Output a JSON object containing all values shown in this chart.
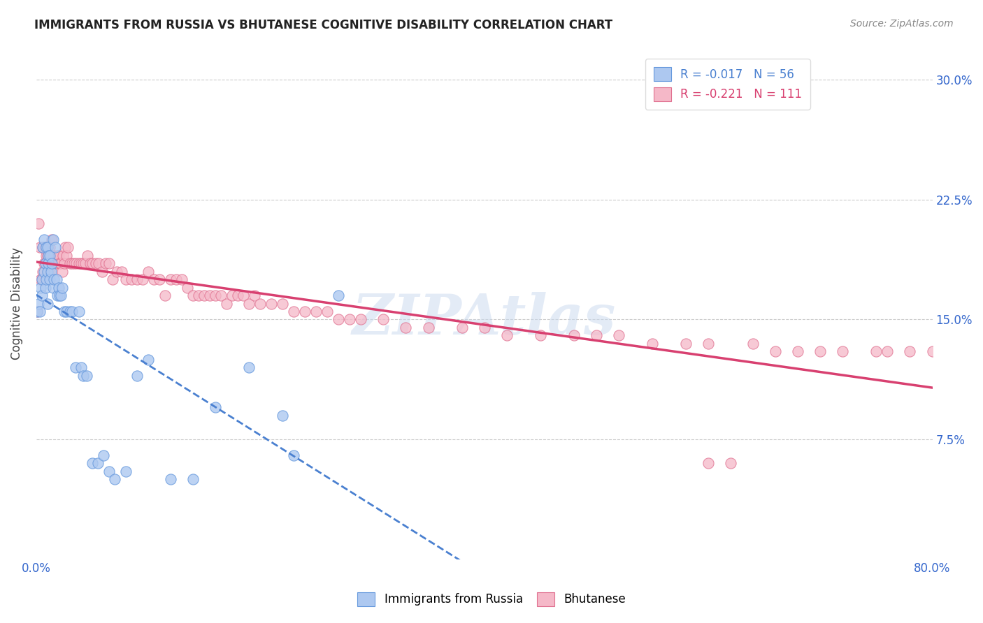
{
  "title": "IMMIGRANTS FROM RUSSIA VS BHUTANESE COGNITIVE DISABILITY CORRELATION CHART",
  "source": "Source: ZipAtlas.com",
  "ylabel": "Cognitive Disability",
  "yticks": [
    "7.5%",
    "15.0%",
    "22.5%",
    "30.0%"
  ],
  "ytick_values": [
    0.075,
    0.15,
    0.225,
    0.3
  ],
  "xlim": [
    0.0,
    0.8
  ],
  "ylim": [
    0.0,
    0.32
  ],
  "color_russia_fill": "#adc8f0",
  "color_russia_edge": "#6699dd",
  "color_bhutan_fill": "#f5b8c8",
  "color_bhutan_edge": "#e07090",
  "trendline_russia_color": "#4a80d0",
  "trendline_bhutan_color": "#d84070",
  "watermark": "ZIPAtlas",
  "russia_R": -0.017,
  "russia_N": 56,
  "bhutan_R": -0.221,
  "bhutan_N": 111,
  "russia_x": [
    0.001,
    0.002,
    0.003,
    0.004,
    0.005,
    0.005,
    0.006,
    0.007,
    0.007,
    0.008,
    0.008,
    0.009,
    0.009,
    0.01,
    0.01,
    0.01,
    0.011,
    0.011,
    0.012,
    0.012,
    0.013,
    0.014,
    0.015,
    0.015,
    0.016,
    0.017,
    0.018,
    0.019,
    0.02,
    0.021,
    0.022,
    0.023,
    0.025,
    0.027,
    0.03,
    0.032,
    0.035,
    0.038,
    0.04,
    0.042,
    0.045,
    0.05,
    0.055,
    0.06,
    0.065,
    0.07,
    0.08,
    0.09,
    0.1,
    0.12,
    0.14,
    0.16,
    0.19,
    0.22,
    0.23,
    0.27
  ],
  "russia_y": [
    0.155,
    0.16,
    0.155,
    0.17,
    0.175,
    0.165,
    0.195,
    0.18,
    0.2,
    0.17,
    0.185,
    0.175,
    0.195,
    0.18,
    0.16,
    0.195,
    0.19,
    0.185,
    0.175,
    0.19,
    0.18,
    0.185,
    0.17,
    0.2,
    0.175,
    0.195,
    0.175,
    0.165,
    0.17,
    0.165,
    0.165,
    0.17,
    0.155,
    0.155,
    0.155,
    0.155,
    0.12,
    0.155,
    0.12,
    0.115,
    0.115,
    0.06,
    0.06,
    0.065,
    0.055,
    0.05,
    0.055,
    0.115,
    0.125,
    0.05,
    0.05,
    0.095,
    0.12,
    0.09,
    0.065,
    0.165
  ],
  "bhutan_x": [
    0.001,
    0.002,
    0.003,
    0.004,
    0.005,
    0.006,
    0.006,
    0.007,
    0.008,
    0.008,
    0.009,
    0.009,
    0.01,
    0.01,
    0.011,
    0.012,
    0.012,
    0.013,
    0.014,
    0.015,
    0.015,
    0.016,
    0.017,
    0.018,
    0.019,
    0.02,
    0.021,
    0.022,
    0.023,
    0.024,
    0.025,
    0.026,
    0.027,
    0.028,
    0.03,
    0.032,
    0.034,
    0.036,
    0.038,
    0.04,
    0.042,
    0.044,
    0.046,
    0.048,
    0.05,
    0.053,
    0.056,
    0.059,
    0.062,
    0.065,
    0.068,
    0.072,
    0.076,
    0.08,
    0.085,
    0.09,
    0.095,
    0.1,
    0.105,
    0.11,
    0.115,
    0.12,
    0.125,
    0.13,
    0.135,
    0.14,
    0.145,
    0.15,
    0.155,
    0.16,
    0.165,
    0.17,
    0.175,
    0.18,
    0.185,
    0.19,
    0.195,
    0.2,
    0.21,
    0.22,
    0.23,
    0.24,
    0.25,
    0.26,
    0.27,
    0.28,
    0.29,
    0.31,
    0.33,
    0.35,
    0.38,
    0.4,
    0.42,
    0.45,
    0.48,
    0.5,
    0.52,
    0.55,
    0.58,
    0.6,
    0.62,
    0.64,
    0.66,
    0.68,
    0.7,
    0.72,
    0.75,
    0.76,
    0.78,
    0.8,
    0.6
  ],
  "bhutan_y": [
    0.155,
    0.21,
    0.195,
    0.175,
    0.175,
    0.195,
    0.18,
    0.185,
    0.185,
    0.195,
    0.19,
    0.195,
    0.185,
    0.19,
    0.185,
    0.18,
    0.195,
    0.19,
    0.2,
    0.185,
    0.185,
    0.19,
    0.185,
    0.185,
    0.19,
    0.19,
    0.185,
    0.185,
    0.18,
    0.19,
    0.185,
    0.195,
    0.19,
    0.195,
    0.185,
    0.185,
    0.185,
    0.185,
    0.185,
    0.185,
    0.185,
    0.185,
    0.19,
    0.185,
    0.185,
    0.185,
    0.185,
    0.18,
    0.185,
    0.185,
    0.175,
    0.18,
    0.18,
    0.175,
    0.175,
    0.175,
    0.175,
    0.18,
    0.175,
    0.175,
    0.165,
    0.175,
    0.175,
    0.175,
    0.17,
    0.165,
    0.165,
    0.165,
    0.165,
    0.165,
    0.165,
    0.16,
    0.165,
    0.165,
    0.165,
    0.16,
    0.165,
    0.16,
    0.16,
    0.16,
    0.155,
    0.155,
    0.155,
    0.155,
    0.15,
    0.15,
    0.15,
    0.15,
    0.145,
    0.145,
    0.145,
    0.145,
    0.14,
    0.14,
    0.14,
    0.14,
    0.14,
    0.135,
    0.135,
    0.135,
    0.06,
    0.135,
    0.13,
    0.13,
    0.13,
    0.13,
    0.13,
    0.13,
    0.13,
    0.13,
    0.06
  ]
}
